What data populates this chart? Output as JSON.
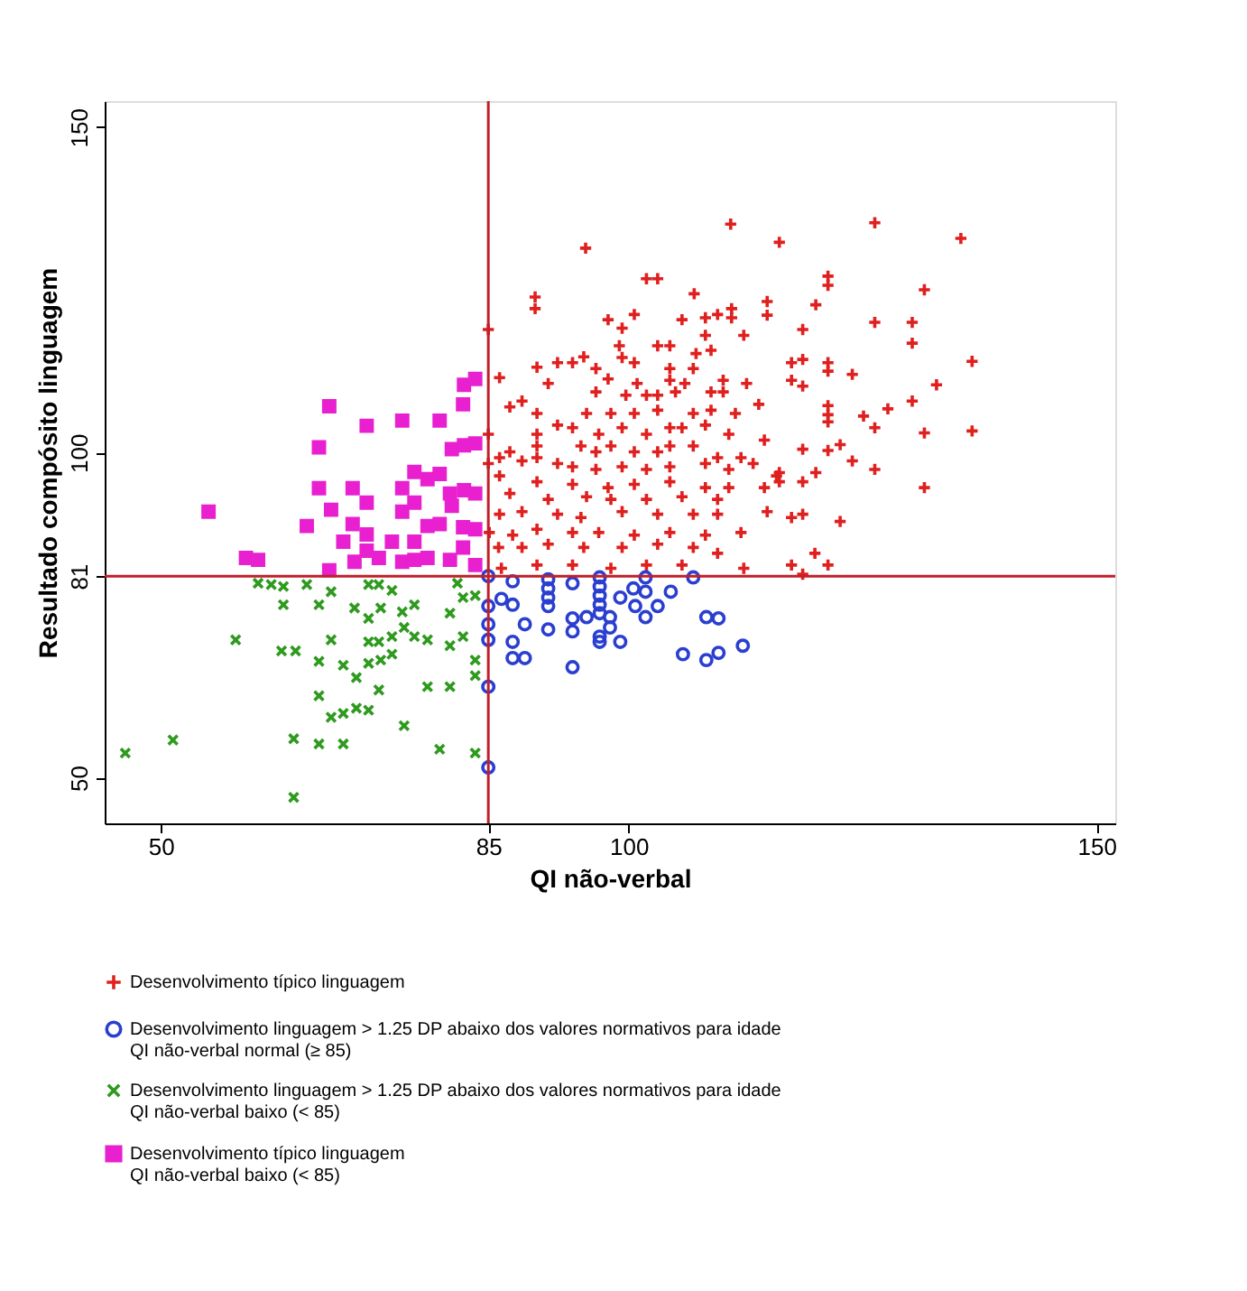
{
  "chart_data": {
    "type": "scatter",
    "xlabel": "QI não-verbal",
    "ylabel": "Resultado compósito linguagem",
    "xlim": [
      44,
      152
    ],
    "ylim": [
      43,
      154
    ],
    "xticks": [
      50,
      85,
      100,
      150
    ],
    "yticks": [
      50,
      81,
      100,
      150
    ],
    "grid": false,
    "legend": "bottom",
    "ref_lines": [
      {
        "axis": "x",
        "value": 85,
        "color": "#c0202a"
      },
      {
        "axis": "y",
        "value": 81,
        "color": "#c0202a"
      }
    ],
    "series": [
      {
        "name": "Desenvolvimento típico linguagem",
        "color": "#e0201e",
        "marker": "plus",
        "x": [
          110.9,
          116.1,
          95.4,
          101.9,
          103.1,
          107.0,
          90.0,
          90.0,
          114.8,
          114.8,
          111.0,
          111.0,
          108.2,
          109.5,
          97.8,
          100.6,
          105.7,
          99.3,
          85.0,
          118.6,
          112.3,
          108.2,
          103.1,
          104.4,
          99.0,
          107.2,
          108.8,
          99.3,
          100.6,
          117.4,
          118.6,
          117.4,
          118.6,
          92.4,
          94.0,
          95.2,
          90.2,
          96.5,
          104.4,
          106.9,
          86.2,
          91.4,
          97.8,
          100.9,
          104.4,
          106.0,
          110.1,
          112.6,
          108.8,
          110.1,
          103.1,
          105.0,
          96.5,
          99.7,
          101.9,
          88.6,
          87.3,
          95.5,
          98.1,
          100.6,
          103.1,
          106.9,
          108.8,
          111.4,
          113.9,
          90.2,
          92.4,
          94.0,
          96.8,
          99.3,
          101.9,
          104.4,
          105.7,
          108.2,
          110.7,
          85.0,
          85.0,
          87.3,
          86.2,
          90.2,
          90.2,
          90.2,
          94.9,
          96.5,
          98.1,
          100.6,
          103.1,
          104.4,
          106.9,
          109.5,
          112.0,
          118.6,
          114.5,
          88.6,
          92.4,
          94.0,
          96.5,
          99.3,
          101.9,
          104.4,
          108.2,
          110.7,
          113.3,
          86.2,
          90.2,
          94.0,
          97.8,
          100.6,
          104.4,
          108.2,
          110.7,
          115.8,
          118.6,
          114.5,
          87.3,
          91.4,
          95.5,
          98.1,
          101.9,
          105.7,
          109.5,
          114.8,
          117.4,
          118.6,
          86.2,
          88.6,
          92.4,
          94.9,
          99.3,
          103.1,
          106.9,
          109.5,
          85.1,
          87.6,
          90.2,
          94.0,
          96.8,
          100.6,
          104.4,
          108.2,
          112.0,
          86.1,
          88.6,
          91.4,
          95.2,
          99.3,
          103.1,
          106.9,
          109.5,
          86.4,
          90.2,
          94.0,
          98.1,
          101.9,
          105.7,
          112.3,
          117.4,
          118.6,
          126.3,
          135.5,
          121.3,
          121.3,
          131.6,
          120.0,
          126.3,
          130.3,
          130.3,
          136.7,
          121.3,
          121.3,
          123.9,
          132.9,
          130.3,
          121.3,
          121.3,
          121.3,
          125.1,
          127.7,
          126.3,
          131.6,
          136.7,
          121.3,
          122.6,
          123.9,
          126.3,
          116.1,
          116.1,
          120.0,
          131.6,
          122.6,
          119.9,
          121.3
        ],
        "values": [
          135.1,
          132.3,
          131.4,
          126.7,
          126.7,
          124.4,
          123.9,
          122.1,
          123.2,
          121.1,
          122.1,
          120.7,
          120.7,
          121.2,
          120.4,
          121.2,
          120.4,
          119.1,
          118.9,
          118.9,
          118.0,
          118.0,
          116.4,
          116.4,
          116.4,
          115.2,
          115.7,
          114.6,
          113.8,
          113.8,
          114.3,
          111.1,
          110.2,
          113.8,
          113.8,
          114.7,
          113.1,
          112.9,
          112.9,
          112.9,
          111.5,
          110.6,
          111.3,
          110.6,
          111.1,
          110.6,
          111.1,
          110.6,
          109.3,
          109.3,
          108.8,
          109.3,
          109.3,
          108.8,
          108.8,
          107.9,
          107.0,
          106.0,
          106.0,
          106.0,
          106.5,
          106.0,
          106.5,
          106.0,
          107.4,
          106.0,
          104.2,
          103.8,
          102.8,
          103.8,
          102.8,
          103.8,
          103.8,
          104.2,
          102.8,
          102.8,
          98.3,
          100.1,
          99.2,
          102.8,
          101.0,
          99.2,
          101.0,
          100.1,
          101.0,
          100.1,
          100.1,
          101.0,
          101.0,
          99.2,
          99.2,
          100.5,
          101.9,
          98.7,
          98.3,
          97.8,
          97.4,
          97.8,
          97.4,
          97.8,
          98.3,
          97.4,
          98.3,
          96.4,
          95.5,
          95.1,
          94.6,
          95.1,
          95.5,
          94.6,
          94.6,
          96.4,
          95.5,
          94.6,
          93.7,
          92.8,
          93.2,
          92.8,
          92.8,
          93.2,
          92.8,
          90.9,
          90.0,
          90.5,
          90.5,
          90.9,
          90.5,
          90.0,
          90.9,
          90.5,
          90.5,
          90.5,
          87.7,
          87.3,
          88.2,
          87.7,
          87.7,
          87.3,
          87.7,
          87.3,
          87.7,
          85.4,
          85.4,
          85.9,
          85.4,
          85.4,
          85.9,
          85.4,
          84.5,
          82.2,
          82.7,
          82.7,
          82.2,
          82.7,
          82.7,
          82.2,
          82.7,
          81.3,
          135.3,
          132.9,
          127.1,
          125.7,
          125.0,
          122.7,
          120.0,
          120.0,
          116.8,
          114.0,
          113.8,
          112.5,
          112.0,
          110.4,
          107.9,
          107.2,
          105.8,
          104.7,
          105.6,
          106.7,
          103.8,
          103.0,
          103.3,
          100.3,
          101.2,
          98.7,
          97.4,
          96.9,
          95.5,
          96.9,
          94.6,
          89.4,
          84.5,
          82.7
        ]
      },
      {
        "name": "Desenvolvimento linguagem  > 1.25 DP abaixo dos valores normativos para idade\nQI não-verbal normal  (≥ 85)",
        "color": "#2a3fd0",
        "marker": "circle",
        "x": [
          85,
          87.6,
          86.4,
          87.6,
          85,
          91.4,
          91.4,
          91.4,
          91.4,
          94.0,
          96.9,
          96.9,
          96.9,
          96.9,
          101.8,
          106.9,
          99.1,
          100.5,
          101.8,
          100.7,
          103.1,
          104.5,
          88.9,
          91.4,
          94.0,
          94.0,
          95.5,
          96.9,
          98.0,
          98.0,
          96.9,
          96.9,
          99.1,
          101.8,
          108.3,
          109.6,
          85,
          85,
          87.6,
          87.6,
          88.9,
          94.0,
          105.8,
          108.3,
          109.6,
          112.2,
          85,
          85
        ],
        "values": [
          81,
          80.2,
          77.5,
          76.6,
          76.4,
          80.5,
          79.1,
          77.7,
          76.4,
          79.9,
          80.8,
          79.4,
          78.0,
          76.6,
          80.8,
          80.8,
          77.7,
          79.1,
          78.6,
          76.4,
          76.4,
          78.6,
          73.6,
          72.8,
          74.5,
          72.5,
          74.7,
          75.3,
          74.7,
          73.1,
          71.7,
          70.9,
          70.9,
          74.7,
          74.7,
          74.5,
          73.6,
          71.2,
          70.9,
          68.4,
          68.4,
          67.0,
          69.0,
          68.1,
          69.2,
          70.3,
          64.0,
          51.6
        ]
      },
      {
        "name": "Desenvolvimento linguagem  > 1.25 DP abaixo dos valores normativos para idade\nQI não-verbal baixo (< 85)",
        "color": "#2e9a1e",
        "marker": "cross",
        "x": [
          60.4,
          61.8,
          63.1,
          65.6,
          63.1,
          66.9,
          68.2,
          72.2,
          73.3,
          74.7,
          70.7,
          72.2,
          73.5,
          75.8,
          77.1,
          80.9,
          82.3,
          83.6,
          81.7,
          58.0,
          62.9,
          64.4,
          68.2,
          72.2,
          73.3,
          74.7,
          76.0,
          77.1,
          78.5,
          80.9,
          82.3,
          66.9,
          69.5,
          72.2,
          73.5,
          74.7,
          70.9,
          73.3,
          78.5,
          80.9,
          83.6,
          83.6,
          66.9,
          68.2,
          69.5,
          70.9,
          72.2,
          76.0,
          46.2,
          51.3,
          64.2,
          66.9,
          69.5,
          79.8,
          83.6,
          64.2
        ],
        "values": [
          79.9,
          79.7,
          79.4,
          79.7,
          76.6,
          76.6,
          78.6,
          79.7,
          79.7,
          78.8,
          76.1,
          74.5,
          76.1,
          75.5,
          76.6,
          75.3,
          77.7,
          78.0,
          79.9,
          71.2,
          69.5,
          69.5,
          71.2,
          70.9,
          70.9,
          71.7,
          73.1,
          71.7,
          71.2,
          70.3,
          71.7,
          67.9,
          67.3,
          67.6,
          68.1,
          69.0,
          65.4,
          63.5,
          64.0,
          64.0,
          68.1,
          65.7,
          62.6,
          59.3,
          59.9,
          60.7,
          60.4,
          58.0,
          53.8,
          55.8,
          56.0,
          55.2,
          55.2,
          54.4,
          53.8,
          47.0
        ]
      },
      {
        "name": "Desenvolvimento típico linguagem\nQI não-verbal baixo (< 85)",
        "color": "#e820d0",
        "marker": "square",
        "x": [
          68.0,
          72.0,
          75.8,
          79.8,
          82.3,
          82.4,
          83.6,
          66.9,
          81.1,
          82.4,
          83.6,
          66.9,
          70.5,
          75.8,
          77.1,
          78.5,
          79.8,
          80.9,
          82.4,
          83.6,
          55.1,
          68.2,
          72.0,
          75.8,
          77.1,
          81.1,
          65.6,
          70.5,
          74.7,
          78.5,
          79.8,
          82.3,
          83.6,
          69.5,
          72.0,
          77.1,
          59.1,
          60.4,
          68.0,
          70.7,
          73.3,
          75.8,
          77.1,
          78.5,
          80.9,
          83.6,
          72.0,
          82.3
        ],
        "values": [
          107.1,
          104.1,
          104.9,
          104.9,
          107.4,
          110.4,
          111.3,
          100.8,
          100.5,
          101.1,
          101.4,
          94.5,
          94.5,
          94.5,
          97.0,
          95.9,
          96.7,
          93.7,
          94.2,
          93.7,
          90.9,
          91.2,
          92.3,
          90.9,
          92.3,
          91.8,
          88.7,
          89.0,
          86.3,
          88.7,
          89.0,
          88.5,
          88.2,
          86.3,
          87.4,
          86.3,
          83.8,
          83.5,
          81.9,
          83.2,
          83.8,
          83.2,
          83.5,
          83.8,
          83.5,
          82.7,
          84.9,
          85.4
        ]
      }
    ]
  }
}
